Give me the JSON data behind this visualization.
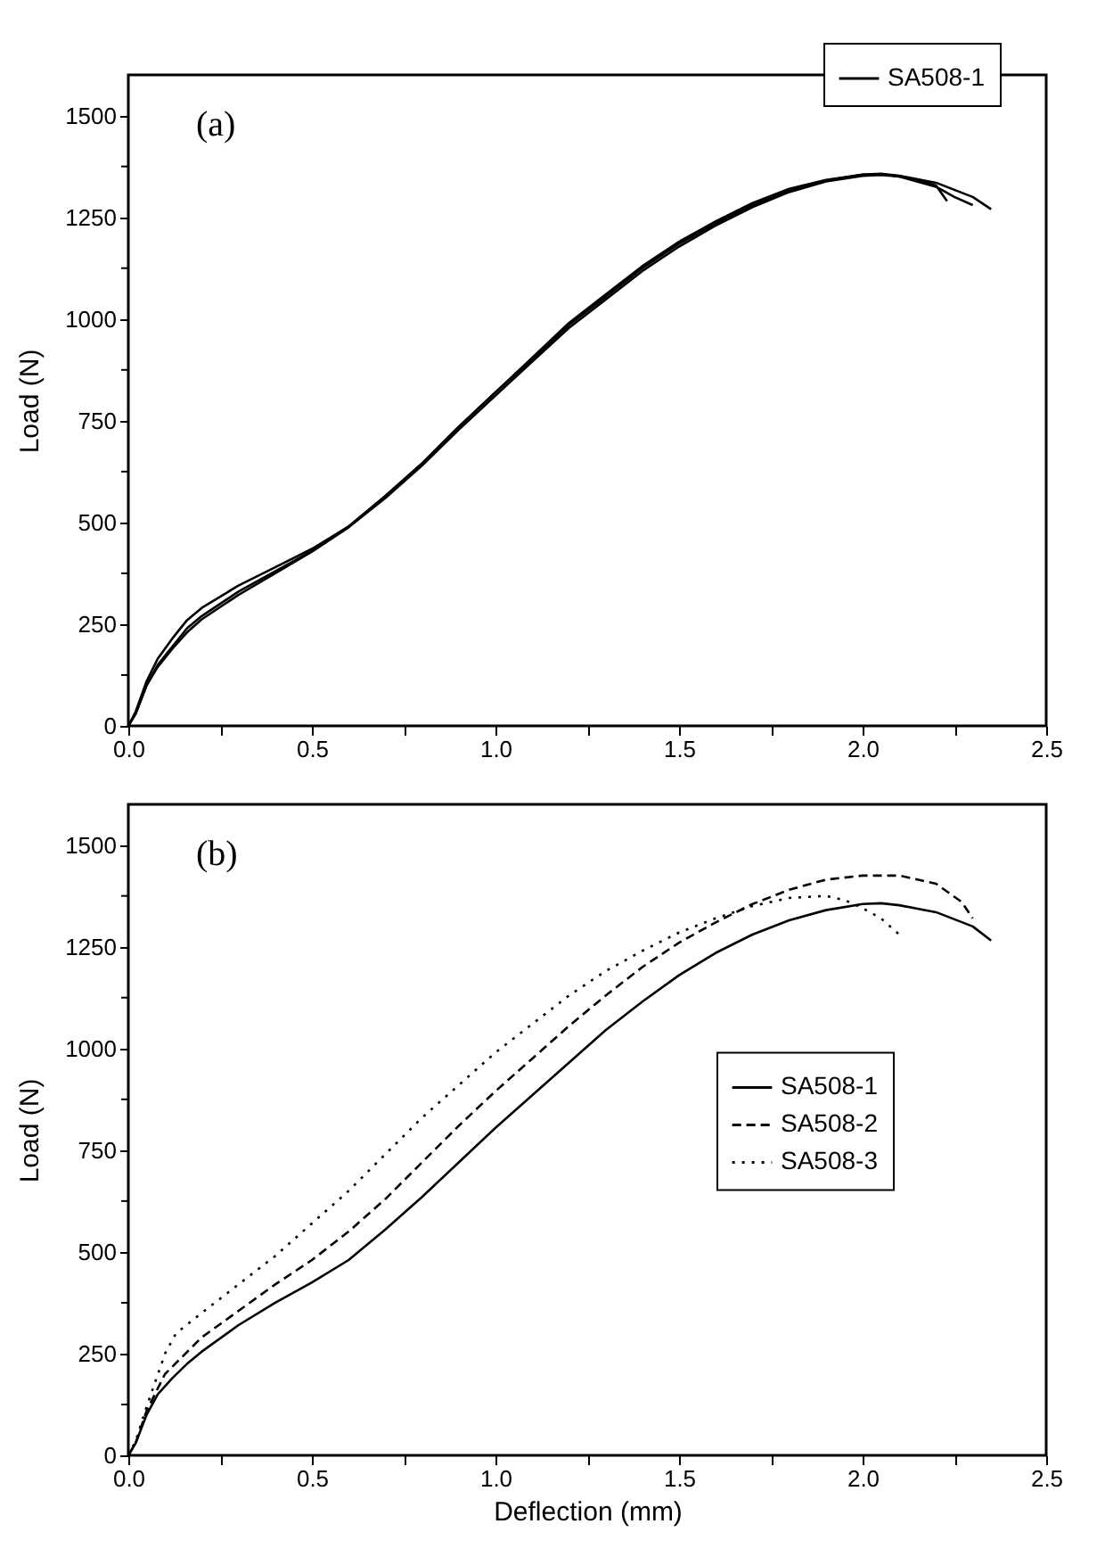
{
  "chart_data": [
    {
      "type": "line",
      "ylabel": "Load (N)",
      "annotations": [
        "(a)"
      ],
      "xlim": [
        0,
        2.5
      ],
      "ylim": [
        0,
        1600
      ],
      "xticks": [
        {
          "value": 0,
          "label": "0.0"
        },
        {
          "value": 0.25,
          "label": null
        },
        0.5,
        {
          "value": 0.75,
          "label": null
        },
        {
          "value": 1,
          "label": "1.0"
        },
        {
          "value": 1.25,
          "label": null
        },
        1.5,
        {
          "value": 1.75,
          "label": null
        },
        {
          "value": 2,
          "label": "2.0"
        },
        {
          "value": 2.25,
          "label": null
        },
        2.5
      ],
      "yticks": [
        0,
        {
          "value": 125,
          "label": null
        },
        250,
        {
          "value": 375,
          "label": null
        },
        500,
        {
          "value": 625,
          "label": null
        },
        750,
        {
          "value": 875,
          "label": null
        },
        1000,
        {
          "value": 1125,
          "label": null
        },
        1250,
        {
          "value": 1375,
          "label": null
        },
        1500
      ],
      "grid": false,
      "legend": "top right",
      "line_style": "solid",
      "series": [
        {
          "name": "SA508-1",
          "color": "#000000",
          "x": [
            0,
            0.02,
            0.05,
            0.08,
            0.12,
            0.16,
            0.2,
            0.3,
            0.4,
            0.5,
            0.6,
            0.7,
            0.8,
            0.9,
            1.0,
            1.1,
            1.2,
            1.3,
            1.4,
            1.5,
            1.6,
            1.7,
            1.8,
            1.9,
            2.0,
            2.05,
            2.1,
            2.2,
            2.3,
            2.35
          ],
          "values": [
            0,
            30,
            100,
            150,
            195,
            240,
            270,
            330,
            380,
            430,
            490,
            565,
            645,
            735,
            820,
            900,
            985,
            1055,
            1125,
            1185,
            1235,
            1280,
            1315,
            1340,
            1355,
            1357,
            1352,
            1335,
            1300,
            1270
          ]
        },
        {
          "color": "#000000",
          "x": [
            0,
            0.02,
            0.05,
            0.08,
            0.12,
            0.16,
            0.2,
            0.3,
            0.4,
            0.5,
            0.6,
            0.7,
            0.8,
            0.9,
            1.0,
            1.1,
            1.2,
            1.3,
            1.4,
            1.5,
            1.6,
            1.7,
            1.8,
            1.9,
            2.0,
            2.05,
            2.1,
            2.2,
            2.25,
            2.3
          ],
          "values": [
            0,
            35,
            110,
            165,
            215,
            260,
            290,
            345,
            390,
            435,
            490,
            565,
            645,
            735,
            820,
            905,
            990,
            1060,
            1130,
            1190,
            1240,
            1285,
            1320,
            1342,
            1355,
            1356,
            1350,
            1325,
            1300,
            1280
          ]
        },
        {
          "color": "#000000",
          "x": [
            0,
            0.02,
            0.05,
            0.08,
            0.12,
            0.16,
            0.2,
            0.3,
            0.4,
            0.5,
            0.6,
            0.7,
            0.8,
            0.9,
            1.0,
            1.1,
            1.2,
            1.3,
            1.4,
            1.5,
            1.6,
            1.7,
            1.8,
            1.9,
            2.0,
            2.05,
            2.1,
            2.15,
            2.2,
            2.23
          ],
          "values": [
            0,
            30,
            100,
            145,
            190,
            230,
            262,
            322,
            375,
            428,
            488,
            560,
            640,
            728,
            812,
            895,
            978,
            1048,
            1118,
            1178,
            1230,
            1275,
            1312,
            1338,
            1352,
            1354,
            1350,
            1342,
            1328,
            1290
          ]
        }
      ]
    },
    {
      "type": "line",
      "xlabel": "Deflection (mm)",
      "ylabel": "Load (N)",
      "annotations": [
        "(b)"
      ],
      "xlim": [
        0,
        2.5
      ],
      "ylim": [
        0,
        1600
      ],
      "xticks": [
        {
          "value": 0,
          "label": "0.0"
        },
        {
          "value": 0.25,
          "label": null
        },
        0.5,
        {
          "value": 0.75,
          "label": null
        },
        {
          "value": 1,
          "label": "1.0"
        },
        {
          "value": 1.25,
          "label": null
        },
        1.5,
        {
          "value": 1.75,
          "label": null
        },
        {
          "value": 2,
          "label": "2.0"
        },
        {
          "value": 2.25,
          "label": null
        },
        2.5
      ],
      "yticks": [
        0,
        {
          "value": 125,
          "label": null
        },
        250,
        {
          "value": 375,
          "label": null
        },
        500,
        {
          "value": 625,
          "label": null
        },
        750,
        {
          "value": 875,
          "label": null
        },
        1000,
        {
          "value": 1125,
          "label": null
        },
        1250,
        {
          "value": 1375,
          "label": null
        },
        1500
      ],
      "grid": false,
      "legend": "right",
      "series": [
        {
          "name": "SA508-1",
          "color": "#000000",
          "line_style": "solid",
          "x": [
            0,
            0.02,
            0.05,
            0.08,
            0.12,
            0.16,
            0.2,
            0.3,
            0.4,
            0.5,
            0.6,
            0.7,
            0.8,
            0.9,
            1.0,
            1.1,
            1.2,
            1.3,
            1.4,
            1.5,
            1.6,
            1.7,
            1.8,
            1.9,
            2.0,
            2.05,
            2.1,
            2.2,
            2.3,
            2.35
          ],
          "values": [
            0,
            30,
            100,
            150,
            190,
            225,
            255,
            320,
            375,
            425,
            480,
            555,
            635,
            720,
            805,
            885,
            965,
            1045,
            1115,
            1180,
            1235,
            1280,
            1315,
            1340,
            1355,
            1357,
            1352,
            1335,
            1300,
            1265
          ]
        },
        {
          "name": "SA508-2",
          "color": "#000000",
          "line_style": "dashed",
          "x": [
            0,
            0.02,
            0.05,
            0.1,
            0.2,
            0.3,
            0.4,
            0.5,
            0.6,
            0.7,
            0.8,
            0.9,
            1.0,
            1.1,
            1.2,
            1.3,
            1.4,
            1.5,
            1.6,
            1.7,
            1.8,
            1.9,
            2.0,
            2.1,
            2.2,
            2.27,
            2.3
          ],
          "values": [
            0,
            30,
            110,
            200,
            290,
            355,
            420,
            480,
            550,
            630,
            720,
            810,
            895,
            975,
            1055,
            1130,
            1200,
            1260,
            1310,
            1355,
            1390,
            1415,
            1425,
            1425,
            1405,
            1360,
            1320
          ]
        },
        {
          "name": "SA508-3",
          "color": "#000000",
          "line_style": "dotted",
          "x": [
            0,
            0.02,
            0.05,
            0.1,
            0.13,
            0.2,
            0.3,
            0.4,
            0.5,
            0.6,
            0.7,
            0.8,
            0.9,
            1.0,
            1.1,
            1.2,
            1.3,
            1.4,
            1.5,
            1.6,
            1.7,
            1.8,
            1.9,
            1.95,
            2.0,
            2.05,
            2.1
          ],
          "values": [
            0,
            35,
            120,
            250,
            300,
            350,
            420,
            490,
            570,
            650,
            740,
            830,
            910,
            990,
            1060,
            1130,
            1190,
            1240,
            1285,
            1320,
            1350,
            1370,
            1375,
            1365,
            1345,
            1320,
            1280
          ]
        }
      ]
    }
  ]
}
